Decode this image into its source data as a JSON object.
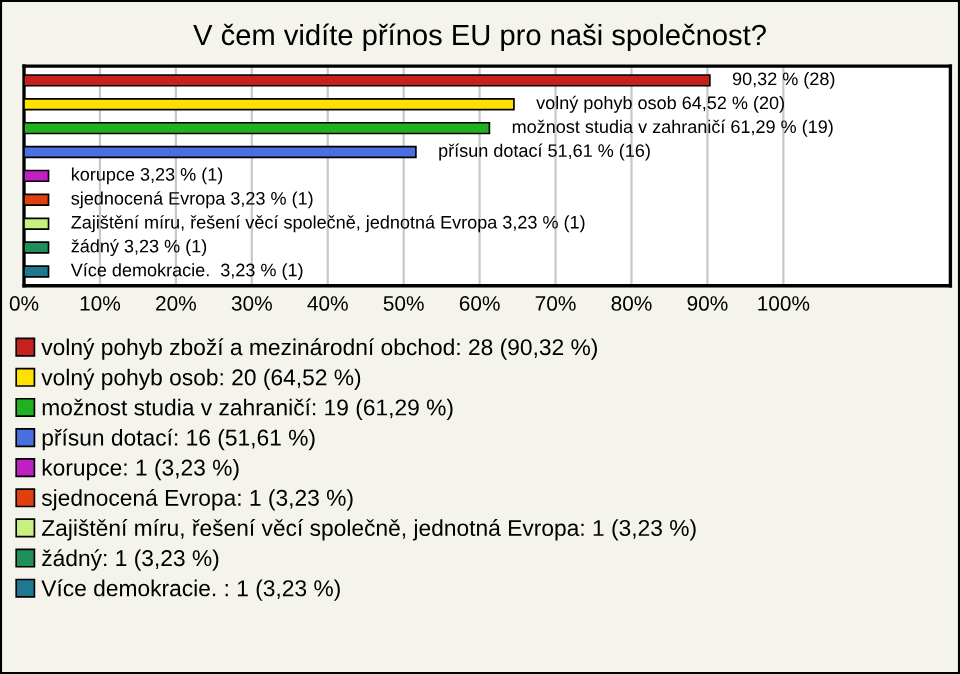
{
  "chart_data": {
    "type": "bar",
    "orientation": "horizontal",
    "title": "V čem vidíte přínos EU pro naši společnost?",
    "categories": [
      null,
      null,
      null,
      null,
      null,
      null,
      null,
      null,
      null
    ],
    "series": [
      {
        "name": "volný pohyb zboží a mezinárodní obchod: 28 (90,32 %)",
        "color": "#c8201c",
        "values": [
          90.32,
          null,
          null,
          null,
          null,
          null,
          null,
          null,
          null
        ],
        "value_labels": [
          "90,32 % (28)",
          null,
          null,
          null,
          null,
          null,
          null,
          null,
          null
        ]
      },
      {
        "name": "volný pohyb osob: 20 (64,52 %)",
        "color": "#ffe000",
        "values": [
          null,
          64.52,
          null,
          null,
          null,
          null,
          null,
          null,
          null
        ],
        "value_labels": [
          null,
          "volný pohyb osob 64,52 % (20)",
          null,
          null,
          null,
          null,
          null,
          null,
          null
        ]
      },
      {
        "name": "možnost studia v zahraničí: 19 (61,29 %)",
        "color": "#20b020",
        "values": [
          null,
          null,
          61.29,
          null,
          null,
          null,
          null,
          null,
          null
        ],
        "value_labels": [
          null,
          null,
          "možnost studia v zahraničí 61,29 % (19)",
          null,
          null,
          null,
          null,
          null,
          null
        ]
      },
      {
        "name": "přísun dotací: 16 (51,61 %)",
        "color": "#4a6fe0",
        "values": [
          null,
          null,
          null,
          51.61,
          null,
          null,
          null,
          null,
          null
        ],
        "value_labels": [
          null,
          null,
          null,
          "přísun dotací 51,61 % (16)",
          null,
          null,
          null,
          null,
          null
        ]
      },
      {
        "name": "korupce: 1 (3,23 %)",
        "color": "#c020c0",
        "values": [
          null,
          null,
          null,
          null,
          3.23,
          null,
          null,
          null,
          null
        ],
        "value_labels": [
          null,
          null,
          null,
          null,
          "korupce 3,23 % (1)",
          null,
          null,
          null,
          null
        ]
      },
      {
        "name": "sjednocená Evropa: 1 (3,23 %)",
        "color": "#e04010",
        "values": [
          null,
          null,
          null,
          null,
          null,
          3.23,
          null,
          null,
          null
        ],
        "value_labels": [
          null,
          null,
          null,
          null,
          null,
          "sjednocená Evropa 3,23 % (1)",
          null,
          null,
          null
        ]
      },
      {
        "name": "Zajištění míru, řešení věcí společně, jednotná Evropa: 1 (3,23 %)",
        "color": "#c8f080",
        "values": [
          null,
          null,
          null,
          null,
          null,
          null,
          3.23,
          null,
          null
        ],
        "value_labels": [
          null,
          null,
          null,
          null,
          null,
          null,
          "Zajištění míru, řešení věcí společně, jednotná Evropa 3,23 % (1)",
          null,
          null
        ]
      },
      {
        "name": "žádný: 1 (3,23 %)",
        "color": "#20905a",
        "values": [
          null,
          null,
          null,
          null,
          null,
          null,
          null,
          3.23,
          null
        ],
        "value_labels": [
          null,
          null,
          null,
          null,
          null,
          null,
          null,
          "žádný 3,23 % (1)",
          null
        ]
      },
      {
        "name": "Více demokracie. : 1 (3,23 %)",
        "color": "#207890",
        "values": [
          null,
          null,
          null,
          null,
          null,
          null,
          null,
          null,
          3.23
        ],
        "value_labels": [
          null,
          null,
          null,
          null,
          null,
          null,
          null,
          null,
          "Více demokracie.  3,23 % (1)"
        ]
      }
    ],
    "xlim": [
      0,
      122
    ],
    "xticks": [
      {
        "value": 0,
        "label": "0%"
      },
      {
        "value": 10,
        "label": "10%"
      },
      {
        "value": 20,
        "label": "20%"
      },
      {
        "value": 30,
        "label": "30%"
      },
      {
        "value": 40,
        "label": "40%"
      },
      {
        "value": 50,
        "label": "50%"
      },
      {
        "value": 60,
        "label": "60%"
      },
      {
        "value": 70,
        "label": "70%"
      },
      {
        "value": 80,
        "label": "80%"
      },
      {
        "value": 90,
        "label": "90%"
      },
      {
        "value": 100,
        "label": "100%"
      }
    ],
    "tick_labels": "x",
    "grid": "x",
    "legend": "bottom"
  }
}
